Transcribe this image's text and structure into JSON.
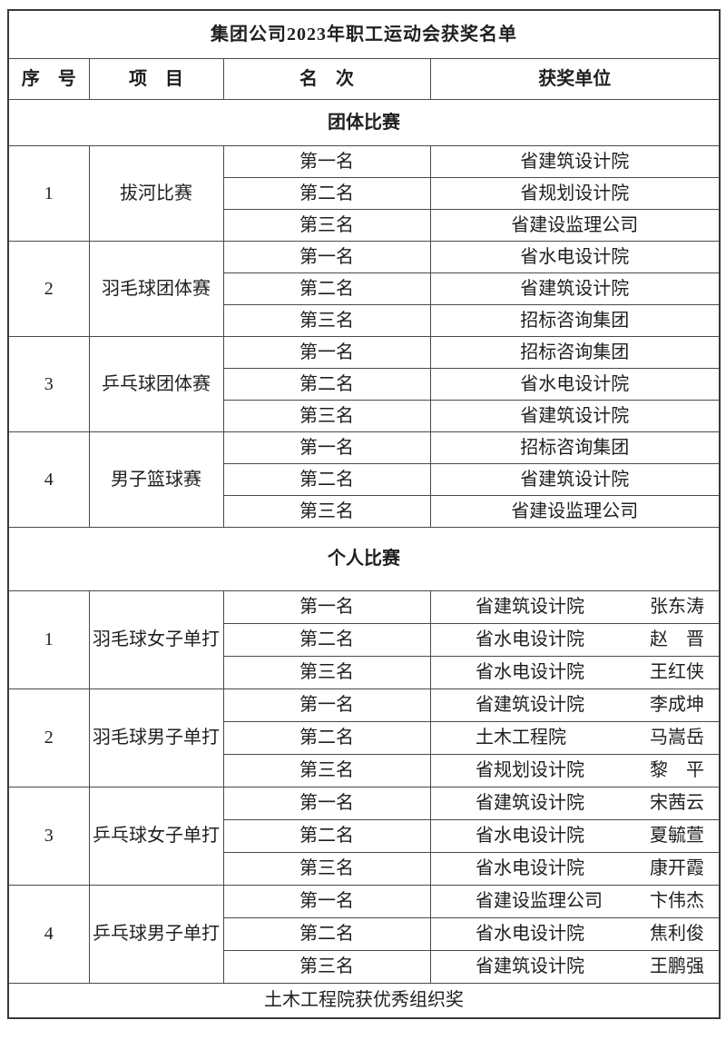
{
  "title": "集团公司2023年职工运动会获奖名单",
  "columns": [
    "序　号",
    "项　目",
    "名　次",
    "获奖单位"
  ],
  "sections": [
    {
      "label": "团体比赛",
      "groups": [
        {
          "no": "1",
          "event": "拔河比赛",
          "results": [
            {
              "rank": "第一名",
              "unit": "省建筑设计院"
            },
            {
              "rank": "第二名",
              "unit": "省规划设计院"
            },
            {
              "rank": "第三名",
              "unit": "省建设监理公司"
            }
          ]
        },
        {
          "no": "2",
          "event": "羽毛球团体赛",
          "results": [
            {
              "rank": "第一名",
              "unit": "省水电设计院"
            },
            {
              "rank": "第二名",
              "unit": "省建筑设计院"
            },
            {
              "rank": "第三名",
              "unit": "招标咨询集团"
            }
          ]
        },
        {
          "no": "3",
          "event": "乒乓球团体赛",
          "results": [
            {
              "rank": "第一名",
              "unit": "招标咨询集团"
            },
            {
              "rank": "第二名",
              "unit": "省水电设计院"
            },
            {
              "rank": "第三名",
              "unit": "省建筑设计院"
            }
          ]
        },
        {
          "no": "4",
          "event": "男子篮球赛",
          "results": [
            {
              "rank": "第一名",
              "unit": "招标咨询集团"
            },
            {
              "rank": "第二名",
              "unit": "省建筑设计院"
            },
            {
              "rank": "第三名",
              "unit": "省建设监理公司"
            }
          ]
        }
      ]
    },
    {
      "label": "个人比赛",
      "groups": [
        {
          "no": "1",
          "event": "羽毛球女子单打",
          "results": [
            {
              "rank": "第一名",
              "unit": "省建筑设计院",
              "name": "张东涛"
            },
            {
              "rank": "第二名",
              "unit": "省水电设计院",
              "name": "赵　晋"
            },
            {
              "rank": "第三名",
              "unit": "省水电设计院",
              "name": "王红侠"
            }
          ]
        },
        {
          "no": "2",
          "event": "羽毛球男子单打",
          "results": [
            {
              "rank": "第一名",
              "unit": "省建筑设计院",
              "name": "李成坤"
            },
            {
              "rank": "第二名",
              "unit": "土木工程院",
              "name": "马嵩岳"
            },
            {
              "rank": "第三名",
              "unit": "省规划设计院",
              "name": "黎　平"
            }
          ]
        },
        {
          "no": "3",
          "event": "乒乓球女子单打",
          "results": [
            {
              "rank": "第一名",
              "unit": "省建筑设计院",
              "name": "宋茜云"
            },
            {
              "rank": "第二名",
              "unit": "省水电设计院",
              "name": "夏毓萱"
            },
            {
              "rank": "第三名",
              "unit": "省水电设计院",
              "name": "康开霞"
            }
          ]
        },
        {
          "no": "4",
          "event": "乒乓球男子单打",
          "results": [
            {
              "rank": "第一名",
              "unit": "省建设监理公司",
              "name": "卞伟杰"
            },
            {
              "rank": "第二名",
              "unit": "省水电设计院",
              "name": "焦利俊"
            },
            {
              "rank": "第三名",
              "unit": "省建筑设计院",
              "name": "王鹏强"
            }
          ]
        }
      ]
    }
  ],
  "footer": "土木工程院获优秀组织奖",
  "colors": {
    "border_heavy": "#3a3a3a",
    "border_light": "#4a4a4a",
    "text": "#1f1f1f",
    "background": "#ffffff"
  }
}
